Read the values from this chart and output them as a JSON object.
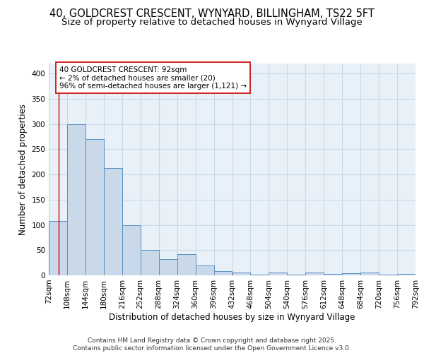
{
  "title_line1": "40, GOLDCREST CRESCENT, WYNYARD, BILLINGHAM, TS22 5FT",
  "title_line2": "Size of property relative to detached houses in Wynyard Village",
  "xlabel": "Distribution of detached houses by size in Wynyard Village",
  "ylabel": "Number of detached properties",
  "bar_left_edges": [
    72,
    108,
    144,
    180,
    216,
    252,
    288,
    324,
    360,
    396,
    432,
    468,
    504,
    540,
    576,
    612,
    648,
    684,
    720,
    756
  ],
  "bar_heights": [
    108,
    300,
    270,
    213,
    100,
    50,
    32,
    42,
    20,
    8,
    5,
    2,
    6,
    1,
    6,
    3,
    4,
    5,
    1,
    3
  ],
  "bin_width": 36,
  "bar_color": "#c9d9ea",
  "bar_edge_color": "#5a8fc0",
  "property_line_x": 92,
  "property_line_color": "#cc0000",
  "annotation_text": "40 GOLDCREST CRESCENT: 92sqm\n← 2% of detached houses are smaller (20)\n96% of semi-detached houses are larger (1,121) →",
  "annotation_box_color": "#ffffff",
  "annotation_box_edge_color": "#cc0000",
  "ylim": [
    0,
    420
  ],
  "yticks": [
    0,
    50,
    100,
    150,
    200,
    250,
    300,
    350,
    400
  ],
  "xtick_labels": [
    "72sqm",
    "108sqm",
    "144sqm",
    "180sqm",
    "216sqm",
    "252sqm",
    "288sqm",
    "324sqm",
    "360sqm",
    "396sqm",
    "432sqm",
    "468sqm",
    "504sqm",
    "540sqm",
    "576sqm",
    "612sqm",
    "648sqm",
    "684sqm",
    "720sqm",
    "756sqm",
    "792sqm"
  ],
  "xtick_positions": [
    72,
    108,
    144,
    180,
    216,
    252,
    288,
    324,
    360,
    396,
    432,
    468,
    504,
    540,
    576,
    612,
    648,
    684,
    720,
    756,
    792
  ],
  "grid_color": "#c8d8e8",
  "background_color": "#e8f0f8",
  "footer_text": "Contains HM Land Registry data © Crown copyright and database right 2025.\nContains public sector information licensed under the Open Government Licence v3.0.",
  "title_fontsize": 10.5,
  "subtitle_fontsize": 9.5,
  "axis_label_fontsize": 8.5,
  "tick_fontsize": 7.5,
  "annotation_fontsize": 7.5,
  "footer_fontsize": 6.5,
  "ann_x_data": 93,
  "ann_y_data": 415,
  "xlim_left": 72,
  "xlim_right": 792
}
